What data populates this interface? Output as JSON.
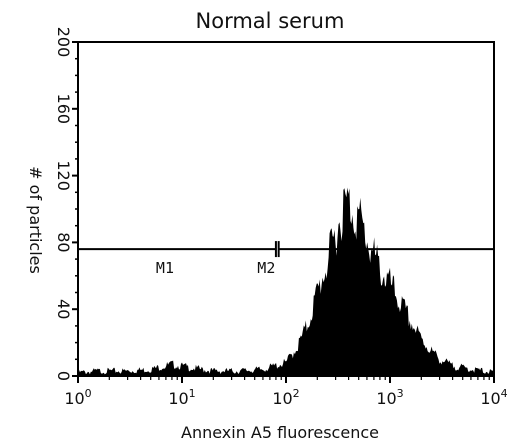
{
  "chart_data": {
    "type": "area",
    "title": "Normal serum",
    "xlabel": "Annexin A5 fluorescence",
    "ylabel": "# of particles",
    "x_scale": "log",
    "xlim": [
      1,
      10000
    ],
    "ylim": [
      0,
      200
    ],
    "x_ticks": [
      {
        "base": "10",
        "exp": "0",
        "value": 1
      },
      {
        "base": "10",
        "exp": "1",
        "value": 10
      },
      {
        "base": "10",
        "exp": "2",
        "value": 100
      },
      {
        "base": "10",
        "exp": "3",
        "value": 1000
      },
      {
        "base": "10",
        "exp": "4",
        "value": 10000
      }
    ],
    "y_ticks": [
      "0",
      "40",
      "80",
      "120",
      "160",
      "200"
    ],
    "grid": false,
    "series": [
      {
        "x": [
          1,
          1.5,
          2,
          3,
          5,
          8,
          12,
          20,
          35,
          60,
          100,
          130,
          160,
          200,
          250,
          300,
          350,
          400,
          450,
          500,
          600,
          700,
          800,
          1000,
          1300,
          1600,
          2000,
          2500,
          3000,
          3500,
          4000,
          5000,
          6000,
          8000,
          10000
        ],
        "y": [
          2,
          3,
          3,
          3,
          4,
          7,
          5,
          3,
          3,
          4,
          8,
          18,
          30,
          50,
          68,
          85,
          100,
          104,
          98,
          95,
          82,
          72,
          64,
          55,
          42,
          32,
          22,
          15,
          10,
          8,
          6,
          5,
          4,
          3,
          2
        ]
      }
    ],
    "gates": [
      {
        "label": "M1",
        "x_start": 1,
        "x_end": 80,
        "y": 76
      },
      {
        "label": "M2",
        "x_start": 85,
        "x_end": 10000,
        "y": 76
      }
    ],
    "colors": {
      "fill": "#000000",
      "axis": "#000000",
      "gate": "#000000"
    }
  }
}
